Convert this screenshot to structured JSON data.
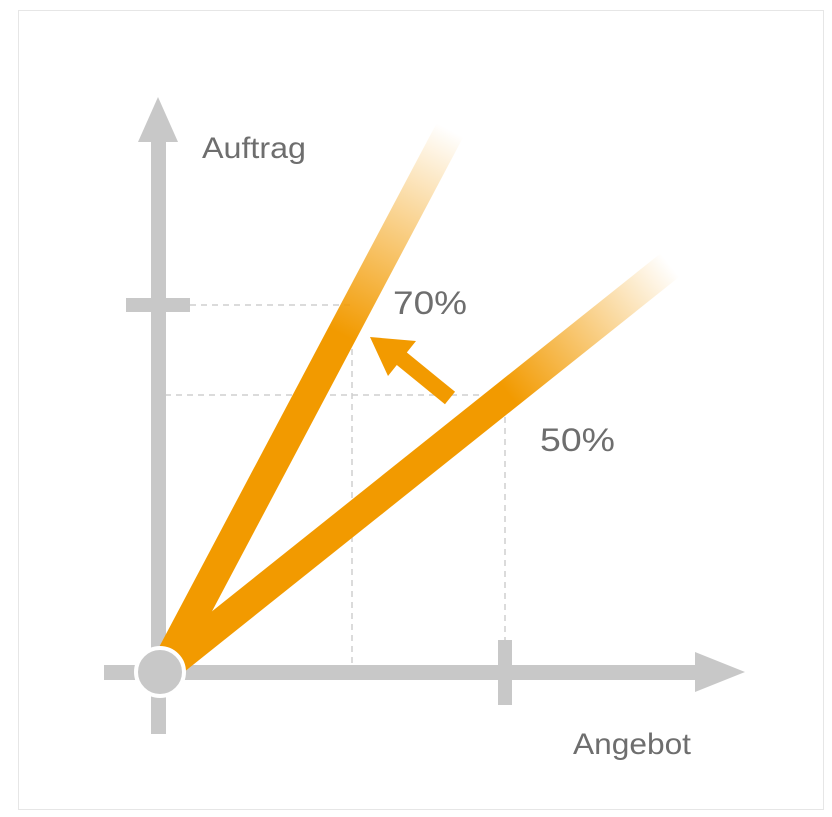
{
  "axes": {
    "y_label": "Auftrag",
    "x_label": "Angebot"
  },
  "rays": [
    {
      "label": "70%"
    },
    {
      "label": "50%"
    }
  ],
  "colors": {
    "ray": "#f29a00",
    "axis": "#c8c8c8",
    "guide": "#cfcfcf",
    "text": "#6e6e6e"
  },
  "icons": {
    "arrow": "arrow-up-left-icon",
    "origin": "origin-circle-icon"
  }
}
